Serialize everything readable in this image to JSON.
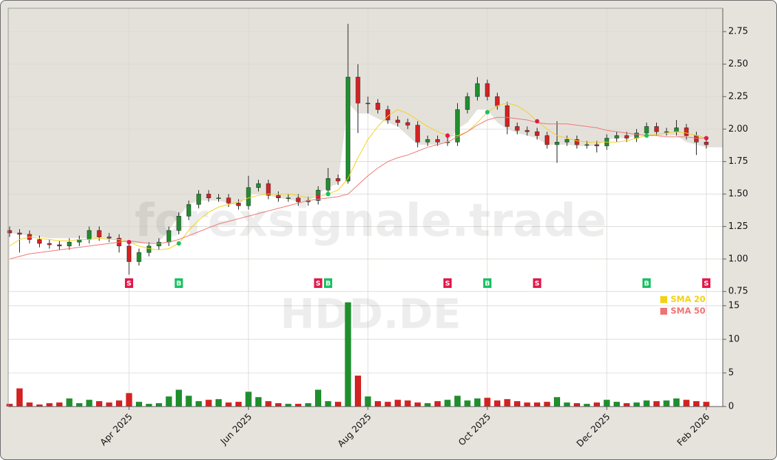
{
  "chart_data": {
    "type": "candlestick",
    "watermark": "forexsignale.trade",
    "symbol": "HDD.DE",
    "categories": [
      null,
      null,
      null,
      null,
      null,
      null,
      null,
      null,
      null,
      null,
      null,
      null,
      "Apr 2025",
      null,
      null,
      null,
      null,
      null,
      null,
      null,
      null,
      null,
      null,
      null,
      "Jun 2025",
      null,
      null,
      null,
      null,
      null,
      null,
      null,
      null,
      null,
      null,
      null,
      "Aug 2025",
      null,
      null,
      null,
      null,
      null,
      null,
      null,
      null,
      null,
      null,
      null,
      "Oct 2025",
      null,
      null,
      null,
      null,
      null,
      null,
      null,
      null,
      null,
      null,
      null,
      "Dec 2025",
      null,
      null,
      null,
      null,
      null,
      null,
      null,
      null,
      null,
      "Feb 2026"
    ],
    "open": [
      1.22,
      1.2,
      1.19,
      1.15,
      1.12,
      1.11,
      1.1,
      1.13,
      1.15,
      1.22,
      1.17,
      1.16,
      1.1,
      0.98,
      1.05,
      1.1,
      1.13,
      1.22,
      1.33,
      1.42,
      1.5,
      1.47,
      1.47,
      1.43,
      1.41,
      1.55,
      1.58,
      1.49,
      1.47,
      1.47,
      1.44,
      1.45,
      1.53,
      1.62,
      1.6,
      2.4,
      2.2,
      2.2,
      2.15,
      2.07,
      2.05,
      2.03,
      1.9,
      1.92,
      1.9,
      1.9,
      2.15,
      2.25,
      2.35,
      2.25,
      2.18,
      2.02,
      1.99,
      1.98,
      1.95,
      1.88,
      1.9,
      1.92,
      1.88,
      1.88,
      1.87,
      1.93,
      1.95,
      1.93,
      1.97,
      2.02,
      1.98,
      1.98,
      2.01,
      1.95,
      1.9
    ],
    "high": [
      1.25,
      1.23,
      1.22,
      1.18,
      1.15,
      1.14,
      1.16,
      1.18,
      1.25,
      1.25,
      1.2,
      1.19,
      1.13,
      1.08,
      1.13,
      1.16,
      1.25,
      1.36,
      1.45,
      1.53,
      1.53,
      1.5,
      1.5,
      1.46,
      1.64,
      1.61,
      1.61,
      1.52,
      1.5,
      1.5,
      1.48,
      1.56,
      1.7,
      1.65,
      2.81,
      2.5,
      2.25,
      2.23,
      2.18,
      2.1,
      2.08,
      2.06,
      1.95,
      1.95,
      1.95,
      2.2,
      2.28,
      2.4,
      2.38,
      2.28,
      2.21,
      2.05,
      2.02,
      2.01,
      1.98,
      2.06,
      1.95,
      1.95,
      1.91,
      1.91,
      1.96,
      1.98,
      1.98,
      2.0,
      2.05,
      2.05,
      2.01,
      2.07,
      2.04,
      1.98,
      1.93
    ],
    "low": [
      1.17,
      1.05,
      1.12,
      1.09,
      1.08,
      1.07,
      1.07,
      1.1,
      1.12,
      1.14,
      1.13,
      1.05,
      0.88,
      0.95,
      1.02,
      1.07,
      1.1,
      1.19,
      1.3,
      1.39,
      1.44,
      1.44,
      1.4,
      1.38,
      1.38,
      1.52,
      1.46,
      1.44,
      1.44,
      1.41,
      1.41,
      1.42,
      1.5,
      1.57,
      1.58,
      1.97,
      2.12,
      2.12,
      2.04,
      2.02,
      2.0,
      1.86,
      1.87,
      1.87,
      1.87,
      1.87,
      2.12,
      2.22,
      2.22,
      2.15,
      1.96,
      1.96,
      1.95,
      1.92,
      1.85,
      1.74,
      1.87,
      1.85,
      1.85,
      1.82,
      1.84,
      1.9,
      1.9,
      1.9,
      1.94,
      1.95,
      1.95,
      1.95,
      1.92,
      1.8,
      1.85
    ],
    "close": [
      1.2,
      1.19,
      1.15,
      1.12,
      1.11,
      1.1,
      1.13,
      1.15,
      1.22,
      1.17,
      1.16,
      1.1,
      0.98,
      1.05,
      1.1,
      1.13,
      1.22,
      1.33,
      1.42,
      1.5,
      1.47,
      1.47,
      1.43,
      1.41,
      1.55,
      1.58,
      1.49,
      1.47,
      1.47,
      1.44,
      1.45,
      1.53,
      1.62,
      1.6,
      2.4,
      2.2,
      2.2,
      2.15,
      2.07,
      2.05,
      2.03,
      1.9,
      1.92,
      1.9,
      1.9,
      2.15,
      2.25,
      2.35,
      2.25,
      2.18,
      2.02,
      1.99,
      1.98,
      1.95,
      1.88,
      1.9,
      1.92,
      1.88,
      1.88,
      1.87,
      1.93,
      1.95,
      1.93,
      1.97,
      2.02,
      1.98,
      1.98,
      2.01,
      1.95,
      1.9,
      1.88
    ],
    "volume": [
      0.4,
      2.7,
      0.6,
      0.3,
      0.5,
      0.6,
      1.2,
      0.5,
      1.0,
      0.8,
      0.6,
      0.9,
      2.0,
      0.7,
      0.4,
      0.5,
      1.5,
      2.5,
      1.6,
      0.8,
      1.0,
      1.1,
      0.6,
      0.7,
      2.2,
      1.4,
      0.8,
      0.5,
      0.4,
      0.4,
      0.5,
      2.5,
      0.8,
      0.7,
      15.5,
      4.6,
      1.5,
      0.8,
      0.7,
      1.0,
      0.9,
      0.6,
      0.5,
      0.8,
      1.0,
      1.6,
      0.9,
      1.2,
      1.3,
      0.9,
      1.1,
      0.8,
      0.6,
      0.6,
      0.7,
      1.4,
      0.6,
      0.5,
      0.4,
      0.6,
      1.0,
      0.7,
      0.5,
      0.6,
      0.9,
      0.8,
      0.9,
      1.2,
      1.0,
      0.8,
      0.7
    ],
    "series": [
      {
        "name": "SMA 20",
        "color": "#f2d216",
        "values": [
          1.1,
          1.15,
          1.17,
          1.16,
          1.15,
          1.14,
          1.14,
          1.15,
          1.15,
          1.16,
          1.15,
          1.15,
          1.13,
          1.1,
          1.08,
          1.07,
          1.08,
          1.12,
          1.22,
          1.3,
          1.36,
          1.4,
          1.42,
          1.44,
          1.47,
          1.49,
          1.5,
          1.5,
          1.5,
          1.49,
          1.47,
          1.48,
          1.5,
          1.53,
          1.62,
          1.78,
          1.92,
          2.02,
          2.1,
          2.15,
          2.12,
          2.07,
          2.02,
          1.98,
          1.95,
          1.95,
          1.98,
          2.05,
          2.13,
          2.18,
          2.2,
          2.18,
          2.13,
          2.06,
          2.0,
          1.95,
          1.93,
          1.91,
          1.9,
          1.9,
          1.9,
          1.9,
          1.91,
          1.93,
          1.95,
          1.96,
          1.97,
          1.98,
          1.97,
          1.95,
          1.93
        ]
      },
      {
        "name": "SMA 50",
        "color": "#f07373",
        "values": [
          1.0,
          1.02,
          1.04,
          1.05,
          1.06,
          1.07,
          1.08,
          1.09,
          1.1,
          1.11,
          1.12,
          1.13,
          1.14,
          1.13,
          1.12,
          1.12,
          1.13,
          1.15,
          1.18,
          1.21,
          1.24,
          1.27,
          1.29,
          1.31,
          1.33,
          1.35,
          1.37,
          1.39,
          1.41,
          1.43,
          1.45,
          1.46,
          1.47,
          1.48,
          1.5,
          1.57,
          1.64,
          1.7,
          1.75,
          1.78,
          1.8,
          1.83,
          1.86,
          1.88,
          1.9,
          1.94,
          1.98,
          2.03,
          2.07,
          2.09,
          2.09,
          2.08,
          2.07,
          2.05,
          2.04,
          2.04,
          2.04,
          2.03,
          2.02,
          2.01,
          1.99,
          1.98,
          1.97,
          1.96,
          1.95,
          1.95,
          1.94,
          1.94,
          1.94,
          1.93,
          1.93
        ]
      }
    ],
    "signals": [
      null,
      null,
      null,
      null,
      null,
      null,
      null,
      null,
      null,
      null,
      null,
      null,
      "S",
      null,
      null,
      null,
      null,
      "B",
      null,
      null,
      null,
      null,
      null,
      null,
      null,
      null,
      null,
      null,
      null,
      null,
      null,
      "S",
      "B",
      null,
      null,
      null,
      null,
      null,
      null,
      null,
      null,
      null,
      null,
      null,
      "S",
      null,
      null,
      null,
      "B",
      null,
      null,
      null,
      null,
      "S",
      null,
      null,
      null,
      null,
      null,
      null,
      null,
      null,
      null,
      null,
      "B",
      null,
      null,
      null,
      null,
      null,
      "S"
    ],
    "signal_colors": {
      "B": "#19c163",
      "S": "#e3194b"
    },
    "up_color": "#1f8f2e",
    "down_color": "#d42222",
    "area": {
      "color": "#ffffff",
      "values": [
        1.2,
        1.19,
        1.18,
        1.17,
        1.16,
        1.16,
        1.16,
        1.16,
        1.16,
        1.16,
        1.16,
        1.15,
        1.12,
        1.12,
        1.12,
        1.13,
        1.22,
        1.33,
        1.42,
        1.45,
        1.45,
        1.45,
        1.43,
        1.41,
        1.5,
        1.5,
        1.49,
        1.47,
        1.46,
        1.44,
        1.45,
        1.5,
        1.55,
        1.58,
        2.2,
        2.12,
        2.12,
        2.08,
        2.05,
        2.02,
        1.95,
        1.88,
        1.88,
        1.88,
        1.9,
        2.0,
        2.05,
        2.15,
        2.15,
        2.05,
        2.0,
        1.97,
        1.95,
        1.93,
        1.88,
        1.88,
        1.88,
        1.87,
        1.87,
        1.87,
        1.92,
        1.93,
        1.93,
        1.95,
        1.95,
        1.95,
        1.95,
        1.95,
        1.9,
        1.88,
        1.86
      ]
    },
    "ylim": [
      0.73,
      2.93
    ],
    "yticks": [
      0.75,
      {
        "value": 1,
        "label": "1.00"
      },
      1.25,
      {
        "value": 1.5,
        "label": "1.50"
      },
      1.75,
      {
        "value": 2,
        "label": "2.00"
      },
      2.25,
      {
        "value": 2.5,
        "label": "2.50"
      },
      2.75
    ],
    "volume_ylim": [
      0,
      15.3
    ],
    "volume_yticks": [
      0,
      5,
      10,
      15
    ],
    "grid": true,
    "legend": "right"
  }
}
